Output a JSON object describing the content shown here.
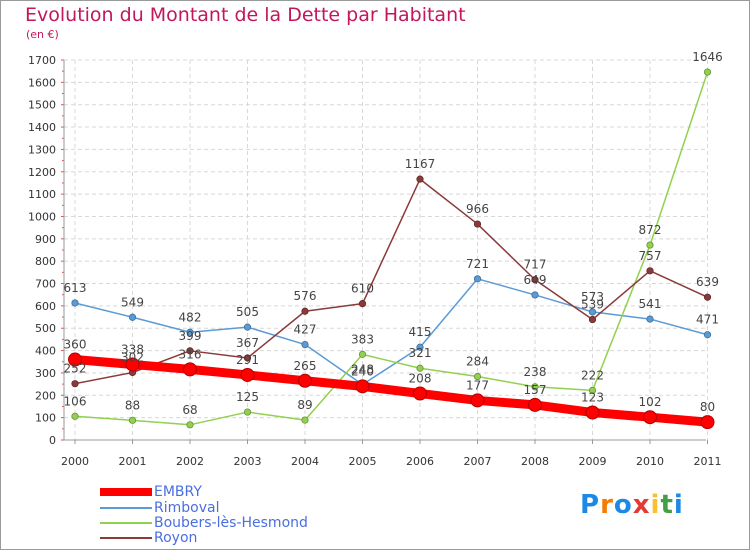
{
  "title": "Evolution du Montant de la Dette par Habitant",
  "subtitle": "(en €)",
  "logo": {
    "text": "Proxiti",
    "letter_colors": [
      "#1e88e5",
      "#f57c00",
      "#1e88e5",
      "#e53935",
      "#fbc02d",
      "#43a047",
      "#1e88e5"
    ]
  },
  "chart_data": {
    "type": "line",
    "x": [
      "2000",
      "2001",
      "2002",
      "2003",
      "2004",
      "2005",
      "2006",
      "2007",
      "2008",
      "2009",
      "2010",
      "2011"
    ],
    "ylim": [
      0,
      1700
    ],
    "yticks": [
      0,
      100,
      200,
      300,
      400,
      500,
      600,
      700,
      800,
      900,
      1000,
      1100,
      1200,
      1300,
      1400,
      1500,
      1600,
      1700
    ],
    "grid": true,
    "legend_position": "bottom-left",
    "series": [
      {
        "name": "EMBRY",
        "color": "#ff0000",
        "values": [
          360,
          338,
          316,
          291,
          265,
          240,
          208,
          177,
          157,
          123,
          102,
          80
        ]
      },
      {
        "name": "Rimboval",
        "color": "#5b9bd5",
        "values": [
          613,
          549,
          482,
          505,
          427,
          248,
          415,
          721,
          649,
          573,
          541,
          471
        ]
      },
      {
        "name": "Boubers-lès-Hesmond",
        "color": "#92d050",
        "values": [
          106,
          88,
          68,
          125,
          89,
          383,
          321,
          284,
          238,
          222,
          872,
          1646
        ]
      },
      {
        "name": "Royon",
        "color": "#8b3a3a",
        "values": [
          252,
          302,
          399,
          367,
          576,
          610,
          1167,
          966,
          717,
          539,
          757,
          639
        ]
      }
    ]
  }
}
